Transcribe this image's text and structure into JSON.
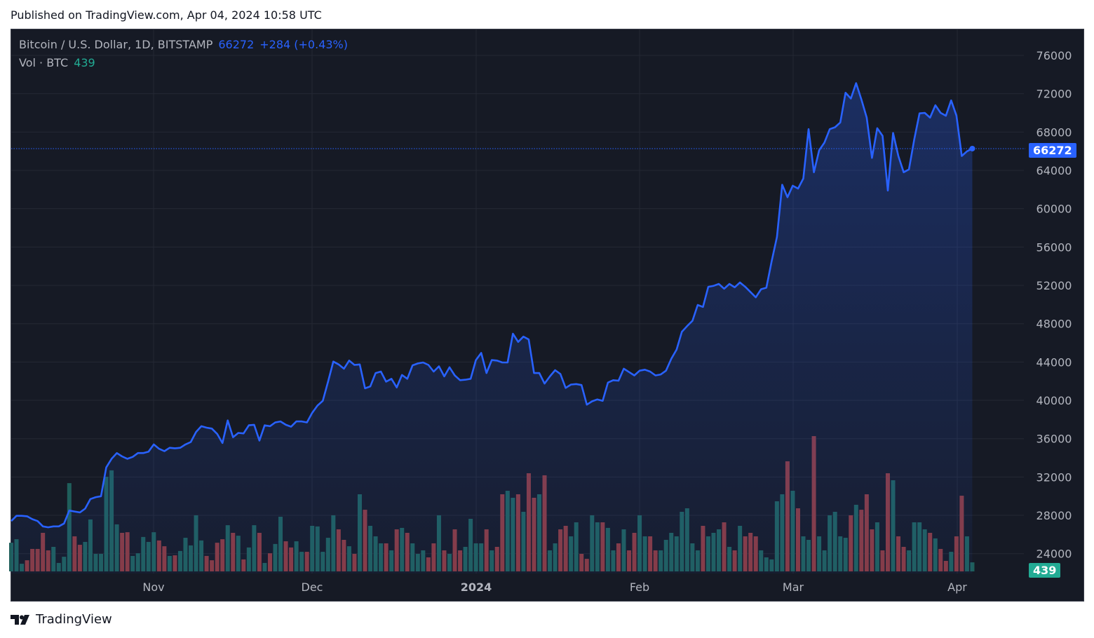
{
  "published": "Published on TradingView.com, Apr 04, 2024 10:58 UTC",
  "legend": {
    "symbol": "Bitcoin / U.S. Dollar, 1D, BITSTAMP",
    "last": "66272",
    "change": "+284 (+0.43%)",
    "vol_label": "Vol · BTC",
    "vol_value": "439"
  },
  "footer": {
    "brand": "TradingView"
  },
  "colors": {
    "line": "#2962ff",
    "up": "#1f5f5b",
    "down": "#8a3a3f",
    "vol_badge": "#22ab94"
  },
  "chart_data": {
    "type": "line",
    "title": "Bitcoin / U.S. Dollar, 1D, BITSTAMP",
    "start_date": "2023-10-05",
    "end_date": "2024-04-04",
    "ylim": [
      22000,
      78000
    ],
    "yticks": [
      "76000",
      "72000",
      "68000",
      "64000",
      "60000",
      "56000",
      "52000",
      "48000",
      "44000",
      "40000",
      "36000",
      "32000",
      "28000",
      "24000"
    ],
    "xticks": [
      "Nov",
      "Dec",
      "2024",
      "Feb",
      "Mar",
      "Apr"
    ],
    "last_price_label": "66272",
    "last_volume_label": "439",
    "close": [
      27400,
      27950,
      27950,
      27900,
      27600,
      27400,
      26850,
      26750,
      26850,
      26850,
      27150,
      28500,
      28400,
      28300,
      28700,
      29700,
      29900,
      29990,
      33000,
      33900,
      34500,
      34150,
      33900,
      34100,
      34500,
      34500,
      34650,
      35400,
      34950,
      34700,
      35050,
      35000,
      35050,
      35400,
      35650,
      36700,
      37300,
      37150,
      37050,
      36500,
      35550,
      37900,
      36150,
      36600,
      36550,
      37400,
      37450,
      35800,
      37400,
      37300,
      37700,
      37800,
      37450,
      37250,
      37800,
      37800,
      37700,
      38700,
      39450,
      39950,
      41950,
      44050,
      43750,
      43300,
      44150,
      43700,
      43750,
      41250,
      41450,
      42850,
      43000,
      41950,
      42250,
      41350,
      42650,
      42250,
      43650,
      43850,
      43950,
      43700,
      43000,
      43550,
      42500,
      43450,
      42600,
      42100,
      42150,
      42250,
      44200,
      44950,
      42850,
      44200,
      44150,
      43950,
      43950,
      46950,
      46100,
      46650,
      46350,
      42850,
      42850,
      41750,
      42500,
      43150,
      42750,
      41300,
      41650,
      41700,
      41600,
      39550,
      39900,
      40100,
      39950,
      41850,
      42100,
      42050,
      43300,
      42950,
      42600,
      43100,
      43200,
      43000,
      42600,
      42700,
      43100,
      44350,
      45300,
      47150,
      47750,
      48300,
      49950,
      49750,
      51850,
      51950,
      52150,
      51650,
      52150,
      51800,
      52300,
      51850,
      51300,
      50750,
      51600,
      51750,
      54500,
      57050,
      62500,
      61200,
      62400,
      62100,
      63150,
      68300,
      63800,
      66100,
      66900,
      68300,
      68500,
      69000,
      72100,
      71500,
      73100,
      71400,
      69500,
      65300,
      68400,
      67600,
      61900,
      67900,
      65500,
      63800,
      64100,
      67200,
      69950,
      70000,
      69500,
      70800,
      70000,
      69700,
      71300,
      69700,
      65500,
      65988,
      66272
    ],
    "volume": [
      1390,
      1560,
      370,
      540,
      1090,
      1090,
      1870,
      1020,
      1190,
      410,
      710,
      4280,
      1700,
      1290,
      1430,
      2520,
      850,
      850,
      4590,
      4900,
      2280,
      1870,
      1900,
      750,
      880,
      1670,
      1430,
      1900,
      1500,
      1220,
      750,
      780,
      990,
      1630,
      1260,
      2720,
      1500,
      750,
      540,
      1390,
      1560,
      2240,
      1870,
      1730,
      580,
      1160,
      2240,
      1870,
      410,
      880,
      1330,
      2650,
      1460,
      1160,
      1460,
      950,
      950,
      2210,
      2180,
      950,
      1630,
      2720,
      2040,
      1530,
      1220,
      850,
      3740,
      2990,
      2210,
      1700,
      1360,
      1360,
      1020,
      2040,
      2110,
      1870,
      1360,
      850,
      1020,
      680,
      1360,
      2720,
      1020,
      850,
      2040,
      1020,
      1190,
      2550,
      1360,
      1360,
      2040,
      1020,
      1190,
      3740,
      3910,
      3570,
      3740,
      2890,
      4760,
      3570,
      3740,
      4660,
      1020,
      1360,
      2040,
      2210,
      1700,
      2380,
      850,
      610,
      2720,
      2380,
      2380,
      2110,
      1020,
      1360,
      2040,
      1020,
      1870,
      2720,
      1700,
      1700,
      1020,
      1020,
      1530,
      1870,
      1700,
      2890,
      3060,
      1360,
      1020,
      2210,
      1700,
      1870,
      2040,
      2380,
      1190,
      1020,
      2210,
      1700,
      1870,
      1700,
      1020,
      680,
      580,
      3400,
      3740,
      5340,
      3910,
      3060,
      1700,
      1530,
      6560,
      1700,
      1020,
      2720,
      2890,
      1700,
      1630,
      2720,
      3230,
      2990,
      3740,
      2040,
      2380,
      1020,
      4760,
      4420,
      1700,
      1190,
      1020,
      2380,
      2380,
      2040,
      1870,
      1600,
      1090,
      510,
      950,
      1700,
      3670,
      1700,
      439
    ]
  }
}
